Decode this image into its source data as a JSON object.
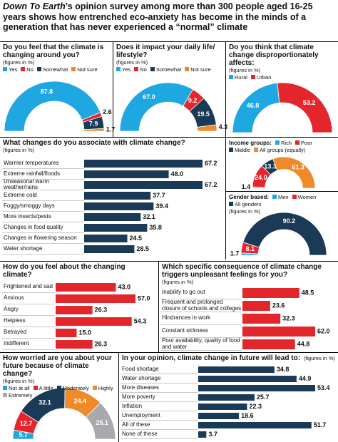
{
  "header": {
    "brand": "Down To Earth",
    "text": "’s opinion survey among more than 300 people aged 16-25 years shows how entrenched eco-anxiety has become in the minds of a generation that has never experienced a “normal” climate"
  },
  "chart_data": [
    {
      "type": "semi-donut",
      "title": "Do you feel that the climate is changing around you?",
      "subtitle": "(figures in %)",
      "categories": [
        "Yes",
        "No",
        "Somewhat",
        "Not sure"
      ],
      "values": [
        87.8,
        2.6,
        7.9,
        1.7
      ],
      "colors": [
        "#1ea7e1",
        "#e3262b",
        "#1b3a57",
        "#ee8a2a"
      ]
    },
    {
      "type": "semi-donut",
      "title": "Does it impact your daily life/ lifestyle?",
      "subtitle": "(figures in %)",
      "categories": [
        "Yes",
        "No",
        "Somewhat",
        "Not sure"
      ],
      "values": [
        67,
        9.2,
        19.5,
        4.3
      ],
      "value_labels": [
        "67.0",
        "9.2",
        "19.5",
        "4.3"
      ],
      "colors": [
        "#1ea7e1",
        "#e3262b",
        "#1b3a57",
        "#ee8a2a"
      ]
    },
    {
      "type": "semi-donut",
      "title": "Do you think that climate change disproportionately affects:",
      "subtitle": "(figures in %)",
      "categories": [
        "Rural",
        "Urban"
      ],
      "values": [
        46.8,
        53.2
      ],
      "colors": [
        "#1ea7e1",
        "#e3262b"
      ]
    },
    {
      "type": "semi-donut",
      "title": "Income groups:",
      "categories": [
        "Rich",
        "Poor",
        "Middle",
        "All groups (equally)"
      ],
      "values": [
        1.4,
        24,
        13.3,
        61.3
      ],
      "value_labels": [
        "1.4",
        "24.0",
        "13.3",
        "61.3"
      ],
      "colors": [
        "#1ea7e1",
        "#e3262b",
        "#1b3a57",
        "#ee8a2a"
      ]
    },
    {
      "type": "semi-donut",
      "title": "Gender based:",
      "subtitle": "(figures in %)",
      "categories": [
        "Men",
        "Women",
        "All genders"
      ],
      "values": [
        1.7,
        8.1,
        90.2
      ],
      "colors": [
        "#1ea7e1",
        "#e3262b",
        "#1b3a57"
      ]
    },
    {
      "type": "hbar",
      "title": "What changes do you associate with climate change?",
      "subtitle": "(figures in %)",
      "categories": [
        "Warmer temperatures",
        "Extreme rainfall/floods",
        "Unseasonal warm weather/rains",
        "Extreme cold",
        "Foggy/smoggy days",
        "More insects/pests",
        "Changes in food quality",
        "Changes in flowering season",
        "Water shortage"
      ],
      "values": [
        67.2,
        48,
        67.2,
        37.7,
        39.4,
        32.1,
        35.8,
        24.5,
        28.5
      ],
      "value_labels": [
        "67.2",
        "48.0",
        "67.2",
        "37.7",
        "39.4",
        "32.1",
        "35.8",
        "24.5",
        "28.5"
      ],
      "color": "#1b3a57"
    },
    {
      "type": "hbar",
      "title": "How do you feel about the changing climate?",
      "categories": [
        "Frightened and sad",
        "Anxious",
        "Angry",
        "Helpless",
        "Betrayed",
        "Indifferent"
      ],
      "values": [
        43,
        57,
        26.3,
        54.3,
        15,
        26.3
      ],
      "value_labels": [
        "43.0",
        "57.0",
        "26.3",
        "54.3",
        "15.0",
        "26.3"
      ],
      "color": "#e3262b"
    },
    {
      "type": "hbar",
      "title": "Which specific consequence of climate change triggers unpleasant feelings for you?",
      "subtitle": "(figures in %)",
      "categories": [
        "Inability to go out",
        "Frequent and prolonged closure of schools and colleges",
        "Hindrances in work",
        "Constant sickness",
        "Poor availability, quality of food and water"
      ],
      "values": [
        48.5,
        23.6,
        32.3,
        62,
        44.8
      ],
      "value_labels": [
        "48.5",
        "23.6",
        "32.3",
        "62.0",
        "44.8"
      ],
      "color": "#e3262b"
    },
    {
      "type": "semi-donut",
      "title": "How worried are you about your future because of climate change?",
      "subtitle": "(figures in %)",
      "categories": [
        "Not at all",
        "A little",
        "Moderately",
        "Highly",
        "Extremely"
      ],
      "values": [
        5.7,
        12.7,
        32.1,
        24.4,
        25.1
      ],
      "colors": [
        "#1ea7e1",
        "#e3262b",
        "#1b3a57",
        "#ee8a2a",
        "#a7a9ac"
      ]
    },
    {
      "type": "hbar",
      "title": "In your opinion, climate change in future will lead to:",
      "subtitle": "(figures in %)",
      "categories": [
        "Food shortage",
        "Water shortage",
        "More diseases",
        "More poverty",
        "Inflation",
        "Unemployment",
        "All of these",
        "None of these"
      ],
      "values": [
        34.8,
        44.9,
        53.4,
        25.7,
        22.3,
        18.6,
        51.7,
        3.7
      ],
      "color": "#1b3a57"
    }
  ]
}
